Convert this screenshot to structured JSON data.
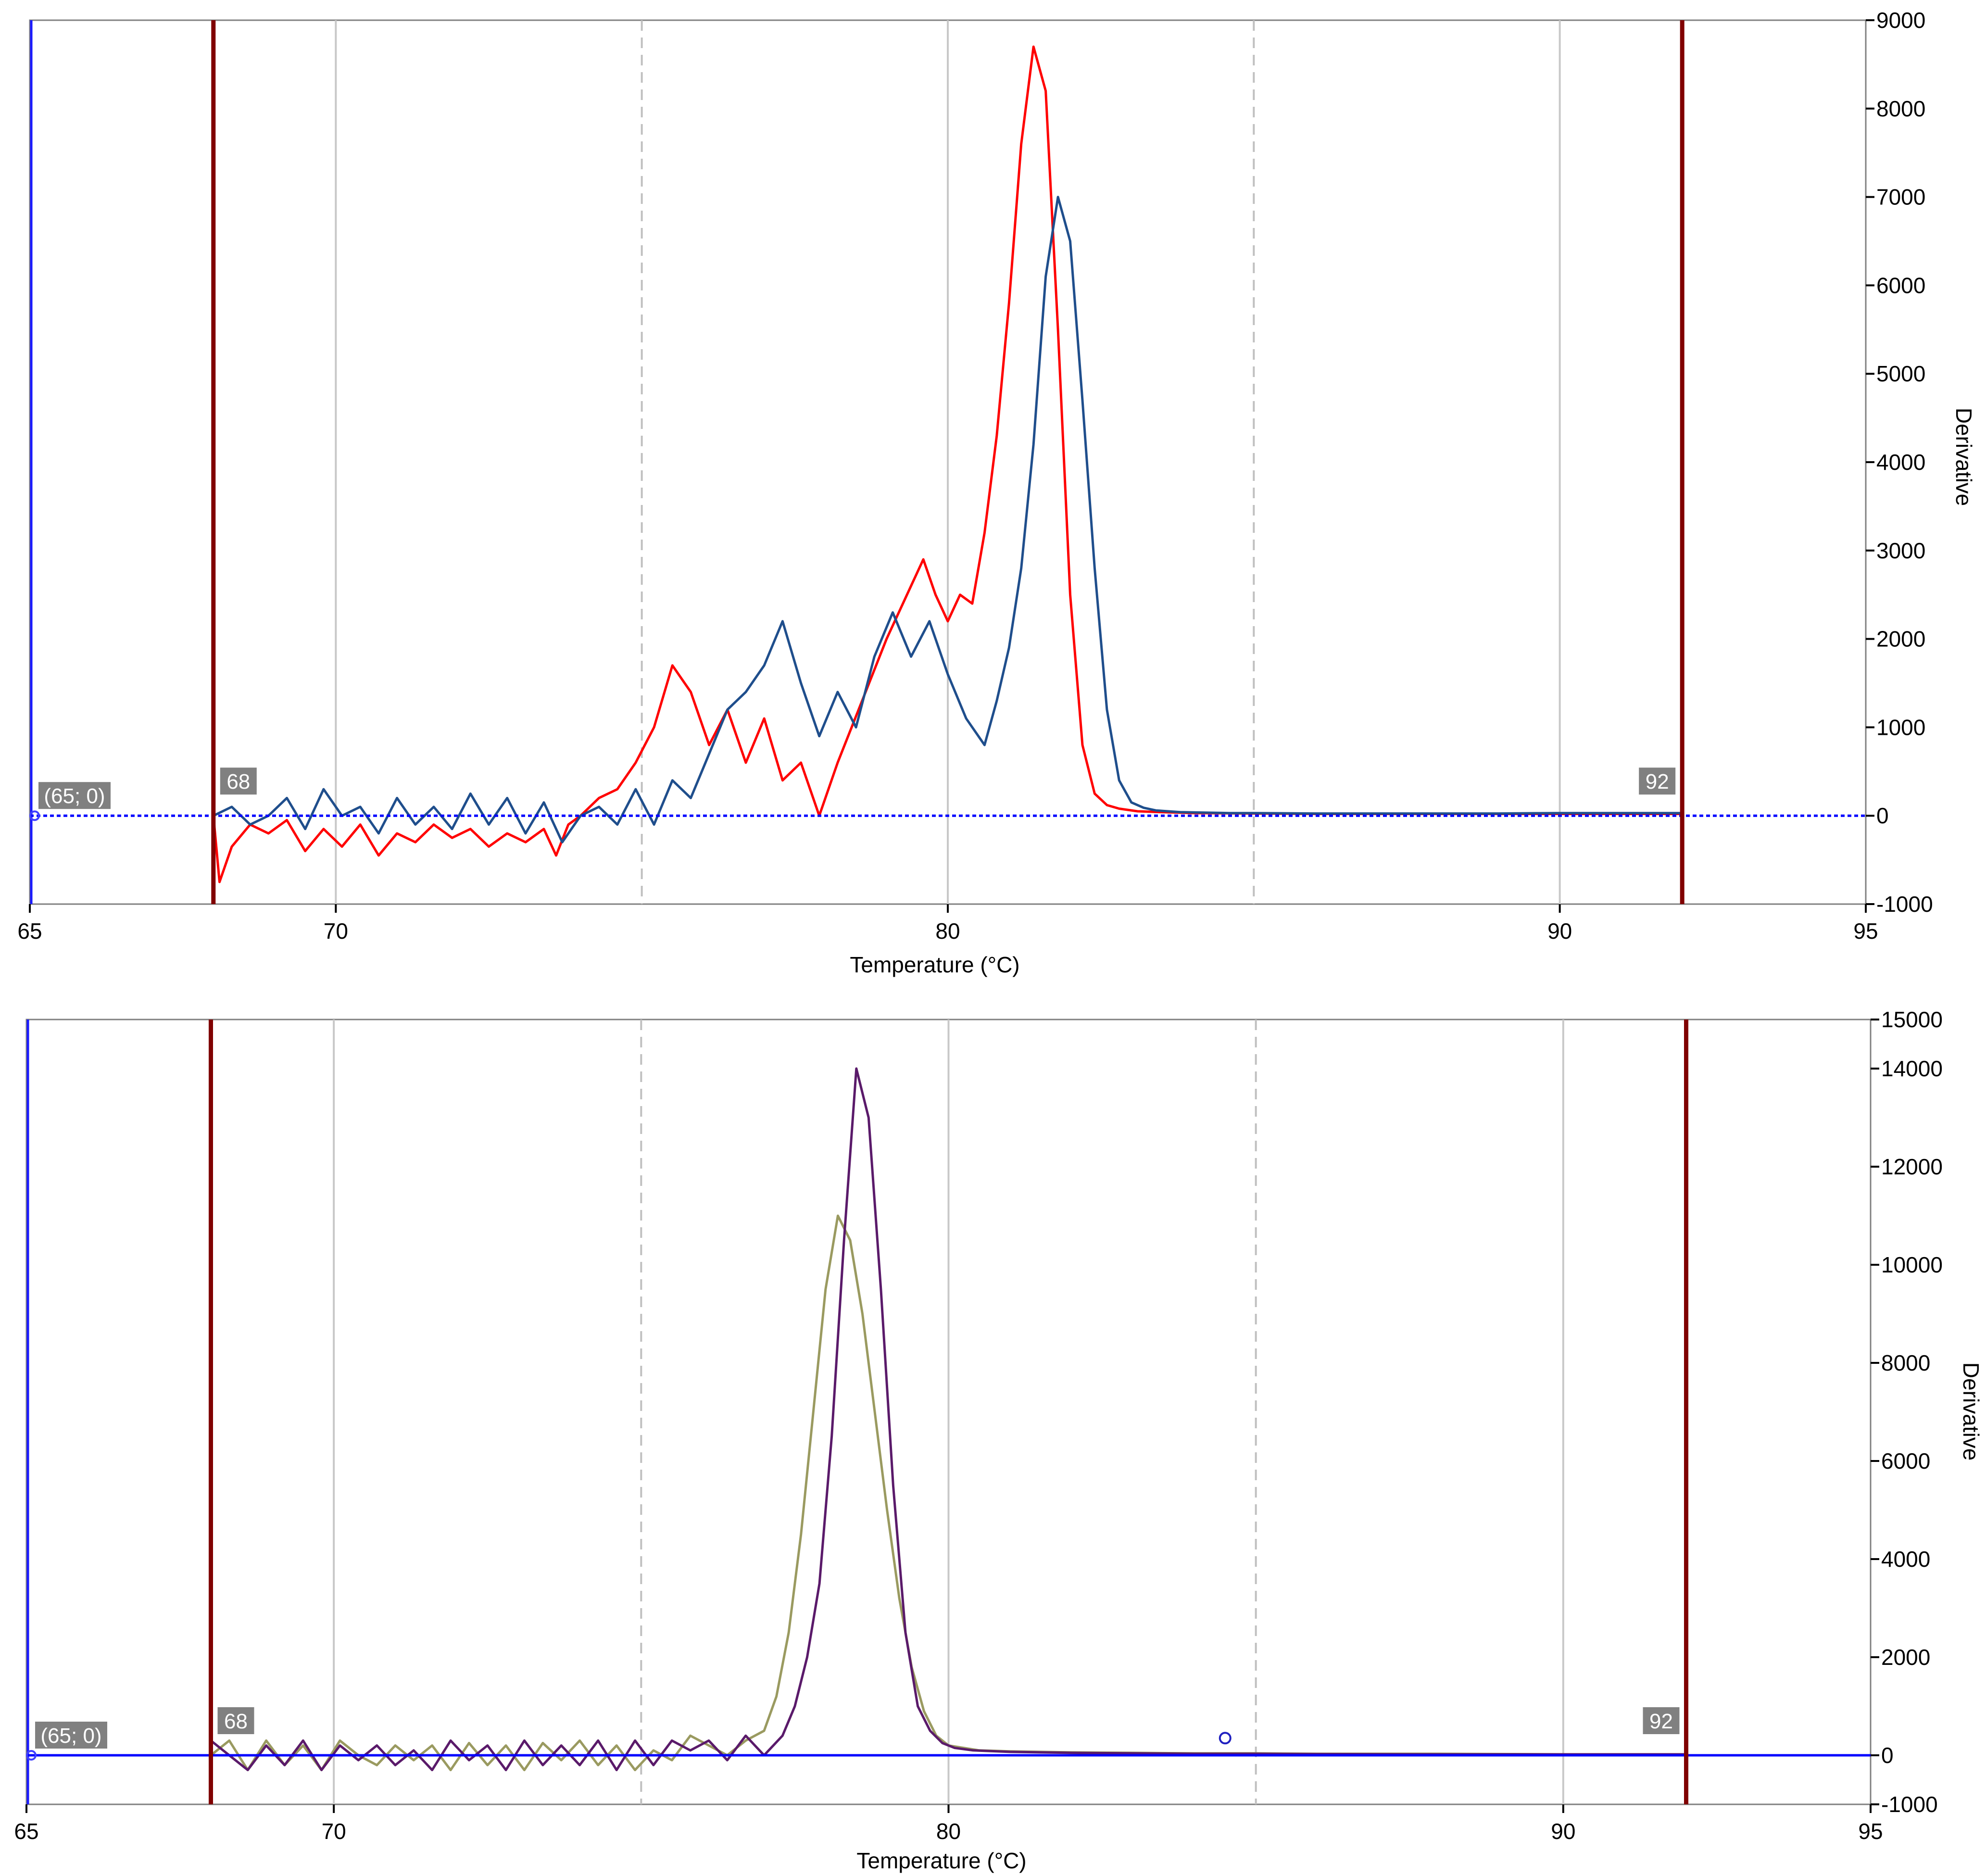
{
  "chart_data": [
    {
      "type": "line",
      "xlabel": "Temperature (°C)",
      "ylabel": "Derivative",
      "xlim": [
        65,
        95
      ],
      "ylim": [
        -1000,
        9000
      ],
      "x_ticks": [
        65,
        70,
        80,
        90,
        95
      ],
      "y_ticks": [
        -1000,
        0,
        1000,
        2000,
        3000,
        4000,
        5000,
        6000,
        7000,
        8000,
        9000
      ],
      "y_axis_side": "right",
      "grid": "vertical",
      "solid_gridlines_x": [
        70,
        80,
        90
      ],
      "dashed_gridlines_x": [
        75,
        85
      ],
      "limit_lines": [
        {
          "x": 68,
          "label": "68",
          "color": "#800000"
        },
        {
          "x": 92,
          "label": "92",
          "color": "#800000"
        }
      ],
      "origin_label": "(65; 0)",
      "baseline": {
        "y": 0,
        "color": "#0000ff",
        "style": "dotted"
      },
      "series": [
        {
          "color": "#ff0000",
          "x": [
            68.0,
            68.1,
            68.3,
            68.6,
            68.9,
            69.2,
            69.5,
            69.8,
            70.1,
            70.4,
            70.7,
            71.0,
            71.3,
            71.6,
            71.9,
            72.2,
            72.5,
            72.8,
            73.1,
            73.4,
            73.6,
            73.8,
            74.0,
            74.3,
            74.6,
            74.9,
            75.2,
            75.5,
            75.8,
            76.1,
            76.4,
            76.7,
            77.0,
            77.3,
            77.6,
            77.9,
            78.2,
            78.6,
            79.0,
            79.4,
            79.6,
            79.8,
            80.0,
            80.2,
            80.4,
            80.6,
            80.8,
            81.0,
            81.2,
            81.4,
            81.6,
            81.8,
            82.0,
            82.2,
            82.4,
            82.6,
            82.8,
            83.1,
            83.5,
            84,
            85,
            86,
            87,
            88,
            89,
            90,
            91,
            92
          ],
          "y": [
            0,
            -750,
            -350,
            -100,
            -200,
            -50,
            -400,
            -150,
            -350,
            -100,
            -450,
            -200,
            -300,
            -100,
            -250,
            -150,
            -350,
            -200,
            -300,
            -150,
            -450,
            -100,
            0,
            200,
            300,
            600,
            1000,
            1700,
            1400,
            800,
            1200,
            600,
            1100,
            400,
            600,
            0,
            600,
            1300,
            2000,
            2600,
            2900,
            2500,
            2200,
            2500,
            2400,
            3200,
            4300,
            5800,
            7600,
            8700,
            8200,
            5500,
            2500,
            800,
            250,
            120,
            80,
            50,
            40,
            30,
            25,
            20,
            20,
            20,
            20,
            20,
            20,
            20
          ]
        },
        {
          "color": "#1f4e8c",
          "x": [
            68.0,
            68.3,
            68.6,
            68.9,
            69.2,
            69.5,
            69.8,
            70.1,
            70.4,
            70.7,
            71.0,
            71.3,
            71.6,
            71.9,
            72.2,
            72.5,
            72.8,
            73.1,
            73.4,
            73.7,
            74.0,
            74.3,
            74.6,
            74.9,
            75.2,
            75.5,
            75.8,
            76.1,
            76.4,
            76.7,
            77.0,
            77.3,
            77.6,
            77.9,
            78.2,
            78.5,
            78.8,
            79.1,
            79.4,
            79.7,
            80.0,
            80.3,
            80.6,
            80.8,
            81.0,
            81.2,
            81.4,
            81.6,
            81.8,
            82.0,
            82.2,
            82.4,
            82.6,
            82.8,
            83.0,
            83.2,
            83.4,
            83.6,
            83.8,
            84.2,
            84.6,
            85,
            86,
            87,
            88,
            89,
            90,
            91,
            92
          ],
          "y": [
            0,
            100,
            -100,
            0,
            200,
            -150,
            300,
            0,
            100,
            -200,
            200,
            -100,
            100,
            -150,
            250,
            -100,
            200,
            -200,
            150,
            -300,
            0,
            100,
            -100,
            300,
            -100,
            400,
            200,
            700,
            1200,
            1400,
            1700,
            2200,
            1500,
            900,
            1400,
            1000,
            1800,
            2300,
            1800,
            2200,
            1600,
            1100,
            800,
            1300,
            1900,
            2800,
            4200,
            6100,
            7000,
            6500,
            4700,
            2800,
            1200,
            400,
            150,
            90,
            60,
            50,
            40,
            35,
            30,
            30,
            25,
            25,
            25,
            25,
            30,
            30,
            30
          ]
        }
      ]
    },
    {
      "type": "line",
      "xlabel": "Temperature (°C)",
      "ylabel": "Derivative",
      "xlim": [
        65,
        95
      ],
      "ylim": [
        -1000,
        15000
      ],
      "x_ticks": [
        65,
        70,
        80,
        90,
        95
      ],
      "y_ticks": [
        -1000,
        0,
        2000,
        4000,
        6000,
        8000,
        10000,
        12000,
        14000,
        15000
      ],
      "y_axis_side": "right",
      "grid": "vertical",
      "solid_gridlines_x": [
        70,
        80,
        90
      ],
      "dashed_gridlines_x": [
        75,
        85
      ],
      "limit_lines": [
        {
          "x": 68,
          "label": "68",
          "color": "#800000"
        },
        {
          "x": 92,
          "label": "92",
          "color": "#800000"
        }
      ],
      "origin_label": "(65; 0)",
      "baseline": {
        "y": 0,
        "color": "#0000ff",
        "style": "solid"
      },
      "marker_point": {
        "x": 84.5,
        "y": 350
      },
      "series": [
        {
          "color": "#9a9a60",
          "x": [
            68.0,
            68.3,
            68.6,
            68.9,
            69.2,
            69.5,
            69.8,
            70.1,
            70.4,
            70.7,
            71.0,
            71.3,
            71.6,
            71.9,
            72.2,
            72.5,
            72.8,
            73.1,
            73.4,
            73.7,
            74.0,
            74.3,
            74.6,
            74.9,
            75.2,
            75.5,
            75.8,
            76.1,
            76.4,
            76.7,
            77.0,
            77.2,
            77.4,
            77.6,
            77.8,
            78.0,
            78.2,
            78.4,
            78.6,
            78.8,
            79.0,
            79.2,
            79.4,
            79.6,
            79.8,
            80.0,
            80.5,
            81,
            82,
            83,
            84,
            85,
            86,
            88,
            90,
            92
          ],
          "y": [
            0,
            300,
            -300,
            300,
            -200,
            200,
            -300,
            300,
            0,
            -200,
            200,
            -100,
            200,
            -300,
            250,
            -200,
            200,
            -300,
            250,
            -100,
            300,
            -200,
            200,
            -300,
            100,
            -100,
            400,
            200,
            0,
            300,
            500,
            1200,
            2500,
            4500,
            7000,
            9500,
            11000,
            10500,
            9000,
            7000,
            5000,
            3200,
            1800,
            900,
            400,
            200,
            100,
            80,
            60,
            50,
            40,
            40,
            30,
            30,
            20,
            20
          ]
        },
        {
          "color": "#5a1a6a",
          "x": [
            68.0,
            68.3,
            68.6,
            68.9,
            69.2,
            69.5,
            69.8,
            70.1,
            70.4,
            70.7,
            71.0,
            71.3,
            71.6,
            71.9,
            72.2,
            72.5,
            72.8,
            73.1,
            73.4,
            73.7,
            74.0,
            74.3,
            74.6,
            74.9,
            75.2,
            75.5,
            75.8,
            76.1,
            76.4,
            76.7,
            77.0,
            77.3,
            77.5,
            77.7,
            77.9,
            78.1,
            78.3,
            78.5,
            78.7,
            78.9,
            79.1,
            79.3,
            79.5,
            79.7,
            79.9,
            80.1,
            80.4,
            81,
            82,
            83,
            84,
            85,
            86,
            88,
            90,
            92
          ],
          "y": [
            300,
            0,
            -300,
            200,
            -200,
            300,
            -300,
            200,
            -100,
            200,
            -200,
            100,
            -300,
            300,
            -100,
            200,
            -300,
            300,
            -200,
            200,
            -200,
            300,
            -300,
            300,
            -200,
            300,
            100,
            300,
            -100,
            400,
            0,
            400,
            1000,
            2000,
            3500,
            6500,
            10500,
            14000,
            13000,
            9500,
            5500,
            2500,
            1000,
            500,
            250,
            150,
            100,
            70,
            50,
            40,
            30,
            30,
            25,
            20,
            20,
            20
          ]
        }
      ]
    }
  ]
}
